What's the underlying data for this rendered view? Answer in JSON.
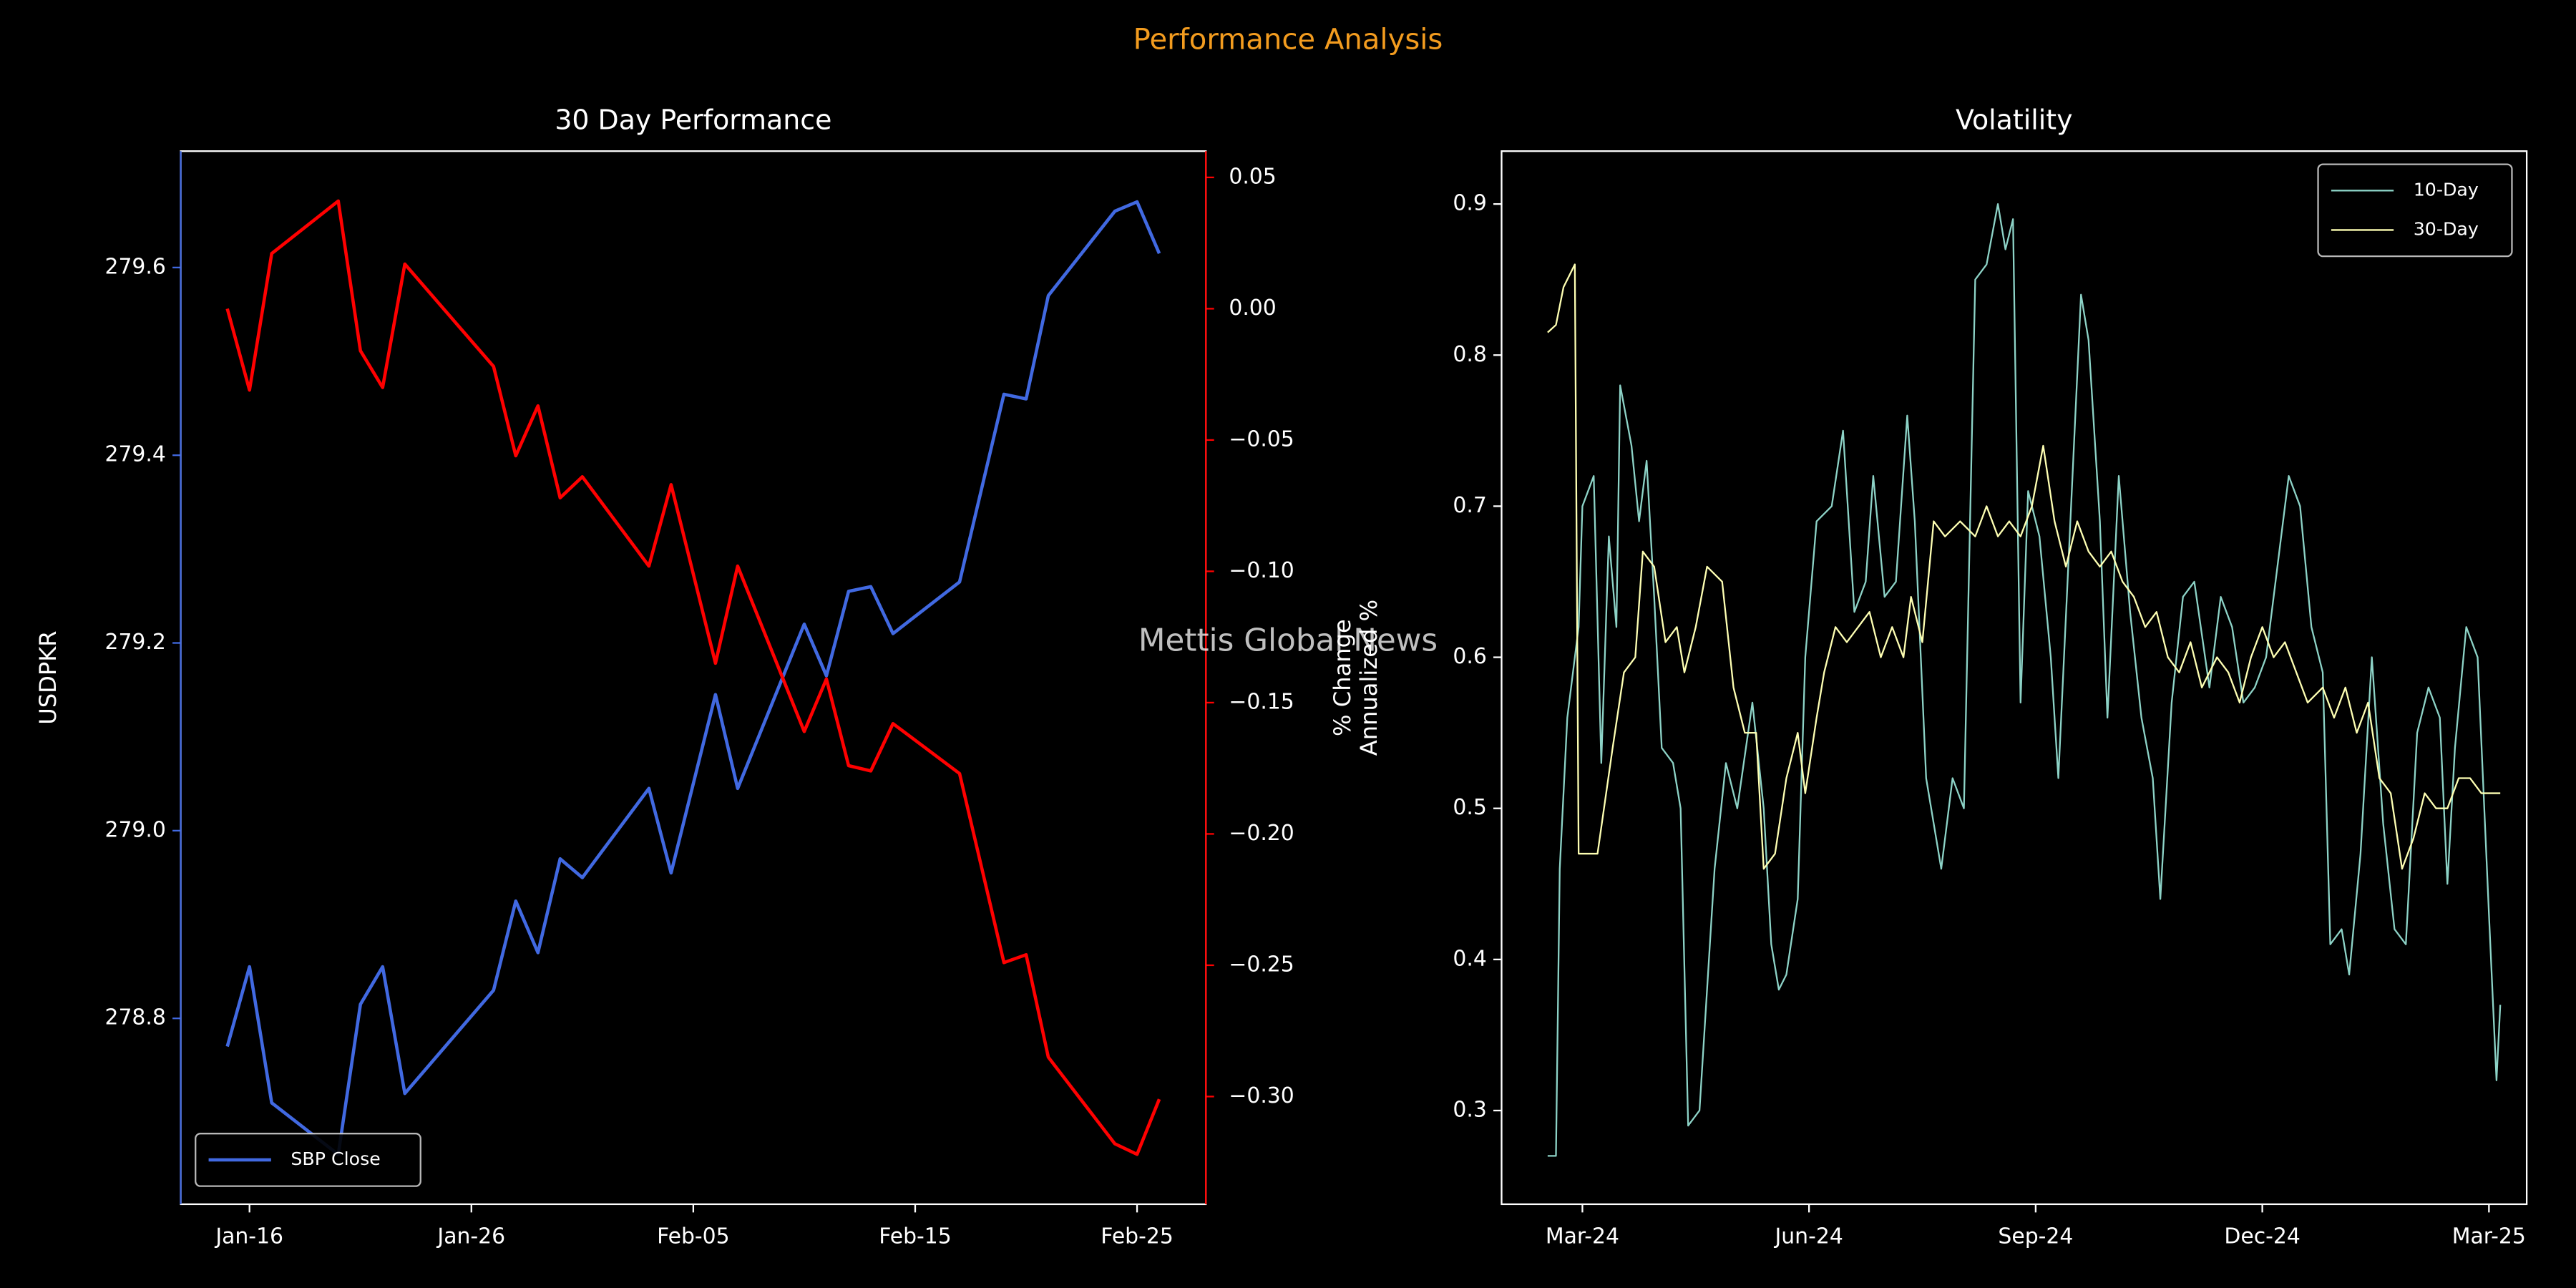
{
  "title": "Performance Analysis",
  "watermark": "Mettis Global News",
  "chart_data": [
    {
      "type": "line",
      "title": "30 Day Performance",
      "ylabel": "USDPKR",
      "y2label": "% Change",
      "legend": "lower left",
      "x": [
        "Jan-15",
        "Jan-16",
        "Jan-17",
        "Jan-20",
        "Jan-21",
        "Jan-22",
        "Jan-23",
        "Jan-27",
        "Jan-28",
        "Jan-29",
        "Jan-30",
        "Jan-31",
        "Feb-03",
        "Feb-04",
        "Feb-06",
        "Feb-07",
        "Feb-10",
        "Feb-11",
        "Feb-12",
        "Feb-13",
        "Feb-14",
        "Feb-17",
        "Feb-19",
        "Feb-20",
        "Feb-21",
        "Feb-24",
        "Feb-25",
        "Feb-26"
      ],
      "xlim": [
        "Jan-15",
        "Feb-26"
      ],
      "xticks": [
        "Jan-16",
        "Jan-26",
        "Feb-05",
        "Feb-15",
        "Feb-25"
      ],
      "ylim": [
        278.602,
        279.724
      ],
      "yticks": [
        278.8,
        {
          "value": 279.0,
          "label": "279.0"
        },
        279.2,
        279.4,
        279.6
      ],
      "y2lim": [
        -0.341,
        0.06
      ],
      "y2ticks": [
        {
          "value": -0.3,
          "label": "−0.30"
        },
        {
          "value": -0.25,
          "label": "−0.25"
        },
        {
          "value": -0.2,
          "label": "−0.20"
        },
        {
          "value": -0.15,
          "label": "−0.15"
        },
        {
          "value": -0.1,
          "label": "−0.10"
        },
        {
          "value": -0.05,
          "label": "−0.05"
        },
        {
          "value": 0,
          "label": "0.00"
        },
        0.05
      ],
      "series": [
        {
          "name": "SBP Close",
          "color": "#4169e1",
          "values": [
            278.77,
            278.855,
            278.71,
            278.655,
            278.815,
            278.855,
            278.72,
            278.83,
            278.925,
            278.87,
            278.97,
            278.95,
            279.045,
            278.955,
            279.145,
            279.045,
            279.22,
            279.165,
            279.255,
            279.26,
            279.21,
            279.265,
            279.465,
            279.46,
            279.57,
            279.66,
            279.67,
            279.615
          ]
        },
        {
          "color": "#ff0000",
          "axis": "y2",
          "values": [
            0.0,
            -0.031,
            0.021,
            0.041,
            -0.016,
            -0.03,
            0.017,
            -0.022,
            -0.056,
            -0.037,
            -0.072,
            -0.064,
            -0.098,
            -0.067,
            -0.135,
            -0.098,
            -0.161,
            -0.141,
            -0.174,
            -0.176,
            -0.158,
            -0.177,
            -0.249,
            -0.246,
            -0.285,
            -0.318,
            -0.322,
            -0.301
          ]
        }
      ]
    },
    {
      "type": "line",
      "title": "Volatility",
      "ylabel": "Annualized %",
      "legend": "upper right",
      "xlim": [
        -1.07,
        12.5
      ],
      "xticks": [
        {
          "value": 0,
          "label": "Mar-24"
        },
        {
          "value": 3,
          "label": "Jun-24"
        },
        {
          "value": 6,
          "label": "Sep-24"
        },
        {
          "value": 9,
          "label": "Dec-24"
        },
        {
          "value": 12,
          "label": "Mar-25"
        }
      ],
      "ylim": [
        0.238,
        0.935
      ],
      "yticks": [
        0.3,
        0.4,
        0.5,
        0.6,
        0.7,
        0.8,
        0.9
      ],
      "series": [
        {
          "name": "10-Day",
          "color": "#8dd3c7",
          "x": [
            -0.46,
            -0.35,
            -0.3,
            -0.2,
            -0.05,
            0.0,
            0.15,
            0.25,
            0.35,
            0.45,
            0.5,
            0.65,
            0.75,
            0.85,
            0.95,
            1.05,
            1.2,
            1.3,
            1.4,
            1.55,
            1.75,
            1.9,
            2.05,
            2.25,
            2.4,
            2.5,
            2.6,
            2.7,
            2.85,
            2.95,
            3.1,
            3.3,
            3.45,
            3.6,
            3.75,
            3.85,
            4.0,
            4.15,
            4.3,
            4.4,
            4.55,
            4.75,
            4.9,
            5.05,
            5.2,
            5.35,
            5.5,
            5.6,
            5.7,
            5.8,
            5.9,
            6.05,
            6.2,
            6.3,
            6.45,
            6.6,
            6.7,
            6.85,
            6.95,
            7.1,
            7.25,
            7.4,
            7.55,
            7.65,
            7.8,
            7.95,
            8.1,
            8.3,
            8.45,
            8.6,
            8.75,
            8.9,
            9.05,
            9.2,
            9.35,
            9.5,
            9.65,
            9.8,
            9.9,
            10.05,
            10.15,
            10.3,
            10.45,
            10.6,
            10.75,
            10.9,
            11.05,
            11.2,
            11.35,
            11.45,
            11.55,
            11.7,
            11.85,
            12.0,
            12.1,
            12.15
          ],
          "values": [
            0.27,
            0.27,
            0.46,
            0.56,
            0.62,
            0.7,
            0.72,
            0.53,
            0.68,
            0.62,
            0.78,
            0.74,
            0.69,
            0.73,
            0.64,
            0.54,
            0.53,
            0.5,
            0.29,
            0.3,
            0.46,
            0.53,
            0.5,
            0.57,
            0.5,
            0.41,
            0.38,
            0.39,
            0.44,
            0.6,
            0.69,
            0.7,
            0.75,
            0.63,
            0.65,
            0.72,
            0.64,
            0.65,
            0.76,
            0.69,
            0.52,
            0.46,
            0.52,
            0.5,
            0.85,
            0.86,
            0.9,
            0.87,
            0.89,
            0.57,
            0.71,
            0.68,
            0.6,
            0.52,
            0.68,
            0.84,
            0.81,
            0.69,
            0.56,
            0.72,
            0.63,
            0.56,
            0.52,
            0.44,
            0.57,
            0.64,
            0.65,
            0.58,
            0.64,
            0.62,
            0.57,
            0.58,
            0.6,
            0.66,
            0.72,
            0.7,
            0.62,
            0.59,
            0.41,
            0.42,
            0.39,
            0.47,
            0.6,
            0.49,
            0.42,
            0.41,
            0.55,
            0.58,
            0.56,
            0.45,
            0.54,
            0.62,
            0.6,
            0.43,
            0.32,
            0.37
          ]
        },
        {
          "name": "30-Day",
          "color": "#feffb3",
          "x": [
            -0.46,
            -0.35,
            -0.25,
            -0.1,
            -0.05,
            0.2,
            0.4,
            0.55,
            0.7,
            0.8,
            0.95,
            1.1,
            1.25,
            1.35,
            1.5,
            1.65,
            1.85,
            2.0,
            2.15,
            2.3,
            2.4,
            2.55,
            2.7,
            2.85,
            2.95,
            3.1,
            3.2,
            3.35,
            3.5,
            3.65,
            3.8,
            3.95,
            4.1,
            4.25,
            4.35,
            4.5,
            4.65,
            4.8,
            5.0,
            5.2,
            5.35,
            5.5,
            5.65,
            5.8,
            5.95,
            6.1,
            6.25,
            6.4,
            6.55,
            6.7,
            6.85,
            7.0,
            7.15,
            7.3,
            7.45,
            7.6,
            7.75,
            7.9,
            8.05,
            8.2,
            8.4,
            8.55,
            8.7,
            8.85,
            9.0,
            9.15,
            9.3,
            9.45,
            9.6,
            9.8,
            9.95,
            10.1,
            10.25,
            10.4,
            10.55,
            10.7,
            10.85,
            11.0,
            11.15,
            11.3,
            11.45,
            11.6,
            11.75,
            11.9,
            12.05,
            12.15
          ],
          "values": [
            0.815,
            0.82,
            0.845,
            0.86,
            0.47,
            0.47,
            0.54,
            0.59,
            0.6,
            0.67,
            0.66,
            0.61,
            0.62,
            0.59,
            0.62,
            0.66,
            0.65,
            0.58,
            0.55,
            0.55,
            0.46,
            0.47,
            0.52,
            0.55,
            0.51,
            0.56,
            0.59,
            0.62,
            0.61,
            0.62,
            0.63,
            0.6,
            0.62,
            0.6,
            0.64,
            0.61,
            0.69,
            0.68,
            0.69,
            0.68,
            0.7,
            0.68,
            0.69,
            0.68,
            0.7,
            0.74,
            0.69,
            0.66,
            0.69,
            0.67,
            0.66,
            0.67,
            0.65,
            0.64,
            0.62,
            0.63,
            0.6,
            0.59,
            0.61,
            0.58,
            0.6,
            0.59,
            0.57,
            0.6,
            0.62,
            0.6,
            0.61,
            0.59,
            0.57,
            0.58,
            0.56,
            0.58,
            0.55,
            0.57,
            0.52,
            0.51,
            0.46,
            0.48,
            0.51,
            0.5,
            0.5,
            0.52,
            0.52,
            0.51,
            0.51,
            0.51
          ]
        }
      ]
    }
  ]
}
